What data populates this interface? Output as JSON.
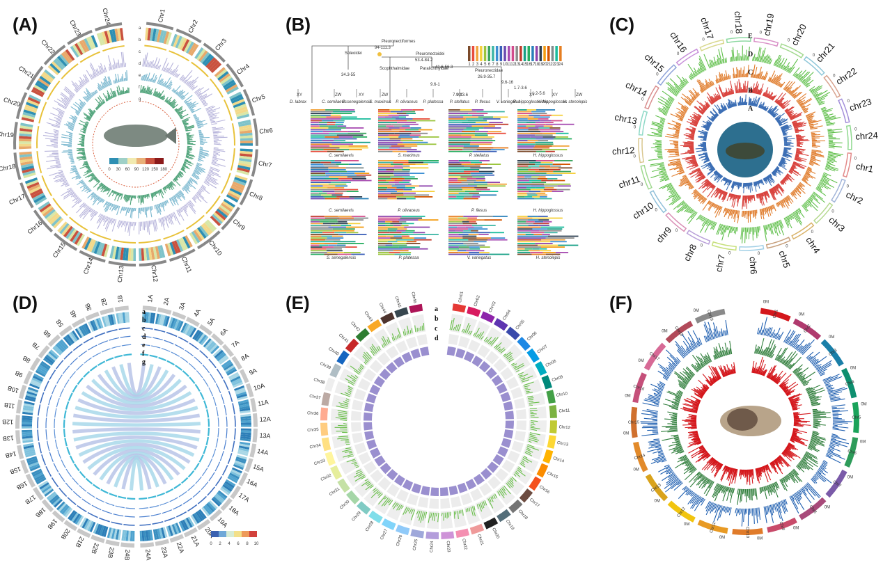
{
  "panels": [
    {
      "label": "(A)",
      "chromosomes": [
        "Chr1",
        "Chr2",
        "Chr3",
        "Chr4",
        "Chr5",
        "Chr6",
        "Chr7",
        "Chr8",
        "Chr9",
        "Chr10",
        "Chr11",
        "Chr12",
        "Chr13",
        "Chr14",
        "Chr15",
        "Chr16",
        "Chr17",
        "Chr18",
        "Chr19",
        "Chr20",
        "Chr21",
        "Chr22",
        "Chr23",
        "Chr24"
      ],
      "track_letters": [
        "a",
        "b",
        "c",
        "d",
        "e",
        "f",
        "g"
      ],
      "colorbar_ticks": [
        "0",
        "30",
        "60",
        "90",
        "120",
        "150",
        "180"
      ],
      "colors": [
        "#e8c23a",
        "#b7b4db",
        "#7bb8cf",
        "#4fa37a",
        "#d9603f"
      ]
    },
    {
      "label": "(B)",
      "tree_nodes": [
        "Pleuronectiformes",
        "Soleoidei",
        "Pleuronectoidei",
        "Scophthalmidae",
        "Paralichthyidae",
        "Pleuronectidae"
      ],
      "node_ages": [
        "94-111.3",
        "53.4-84.2",
        "41.6-56.3",
        "34.3-55",
        "26.9-35.7",
        "9.6-16",
        "9.6-1",
        "7.9-13.6",
        "1.7-3.6",
        "1.2-5.6"
      ],
      "species": [
        "D. labrax",
        "C. semilaevis",
        "S. senegalensis",
        "S. maximus",
        "P. olivaceus",
        "P. platessa",
        "P. stellatus",
        "P. flesus",
        "V. variegatus",
        "R. hippoglossoides",
        "H. hippoglossus",
        "H. stenolepis"
      ],
      "sex_systems": [
        "XY",
        "ZW",
        "XY",
        "ZW",
        "XY",
        "XY",
        "XY",
        "ZW"
      ],
      "legend_numbers": [
        "1",
        "2",
        "3",
        "4",
        "5",
        "6",
        "7",
        "8",
        "9",
        "10",
        "11",
        "12",
        "13",
        "14",
        "15",
        "16",
        "17",
        "18",
        "19",
        "20",
        "21",
        "22",
        "23",
        "24"
      ],
      "grid_titles": [
        "C. semilaevis",
        "S. maximus",
        "P. stellatus",
        "H. hippoglossus",
        "C. semilaevis",
        "P. olivaceus",
        "P. flesus",
        "H. hippoglossus",
        "S. senegalensis",
        "P. platessa",
        "V. variegatus",
        "H. stenolepis"
      ]
    },
    {
      "label": "(C)",
      "chromosomes": [
        "chr1",
        "chr2",
        "chr3",
        "chr4",
        "chr5",
        "chr6",
        "chr7",
        "chr8",
        "chr9",
        "chr10",
        "chr11",
        "chr12",
        "chr13",
        "chr14",
        "chr15",
        "chr16",
        "chr17",
        "chr18",
        "chr19",
        "chr20",
        "chr21",
        "chr22",
        "chr23",
        "chr24"
      ],
      "track_letters": [
        "E",
        "D",
        "C",
        "B",
        "A"
      ],
      "scale_labels": [
        "0",
        "20",
        "40"
      ],
      "colors": [
        "#5fbf4a",
        "#e07c2c",
        "#d9443f",
        "#3d6fb5"
      ]
    },
    {
      "label": "(D)",
      "chromosomes_left": [
        "1B",
        "2B",
        "3B",
        "4B",
        "5B",
        "6B",
        "7B",
        "8B",
        "9B",
        "10B",
        "11B",
        "12B",
        "13B",
        "14B",
        "15B",
        "16B",
        "17B",
        "18B",
        "19B",
        "20B",
        "21B",
        "22B",
        "23B",
        "24B"
      ],
      "chromosomes_right": [
        "1A",
        "2A",
        "3A",
        "4A",
        "5A",
        "6A",
        "7A",
        "8A",
        "9A",
        "10A",
        "11A",
        "12A",
        "13A",
        "14A",
        "15A",
        "16A",
        "17A",
        "18A",
        "19A",
        "20A",
        "21A",
        "22A",
        "23A",
        "24A"
      ],
      "track_letters": [
        "a",
        "b",
        "c",
        "d",
        "e",
        "f",
        "g"
      ],
      "colorbar_ticks": [
        "0",
        "2",
        "4",
        "6",
        "8",
        "10"
      ]
    },
    {
      "label": "(E)",
      "chromosomes": [
        "Chr01",
        "Chr02",
        "Chr03",
        "Chr04",
        "Chr05",
        "Chr06",
        "Chr07",
        "Chr08",
        "Chr09",
        "Chr10",
        "Chr11",
        "Chr12",
        "Chr13",
        "Chr14",
        "Chr15",
        "Chr16",
        "Chr17",
        "Chr18",
        "Chr19",
        "Chr20",
        "Chr21",
        "Chr22",
        "Chr23",
        "Chr24",
        "Chr25",
        "Chr26",
        "Chr27",
        "Chr28",
        "Chr29",
        "Chr30",
        "Chr31",
        "Chr32",
        "Chr33",
        "Chr34",
        "Chr35",
        "Chr36",
        "Chr37",
        "Chr38",
        "Chr39",
        "Chr40",
        "Chr41",
        "Chr42",
        "Chr43",
        "Chr44",
        "Chr45",
        "Chr46"
      ],
      "track_letters": [
        "a",
        "b",
        "c",
        "d"
      ]
    },
    {
      "label": "(F)",
      "chromosomes": [
        "Chr1",
        "Chr2",
        "Chr3",
        "Chr4",
        "Chr5",
        "Chr6",
        "Chr7",
        "Chr8",
        "Chr9",
        "Chr10",
        "Chr11",
        "Chr12",
        "Chr13",
        "Chr14",
        "Chr15",
        "Chr16",
        "Chr17",
        "Chr18",
        "Chr19"
      ],
      "scale_labels": [
        "0M",
        "20M",
        "40M",
        "60M"
      ],
      "colors": [
        "#d4171c",
        "#2e7d3a",
        "#1f5fb0"
      ]
    }
  ]
}
